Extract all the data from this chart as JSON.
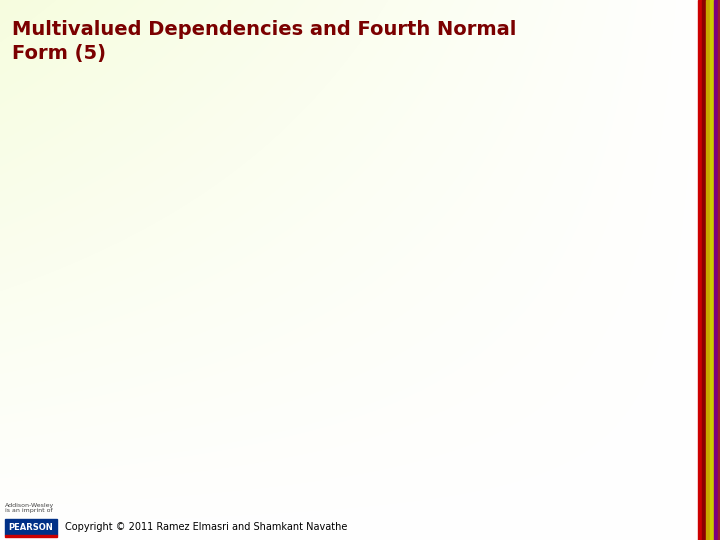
{
  "title": "Multivalued Dependencies and Fourth Normal\nForm (5)",
  "title_color": "#7B0000",
  "title_fontsize": 14,
  "copyright_text": "Copyright © 2011 Ramez Elmasri and Shamkant Navathe",
  "copyright_fontsize": 7,
  "copyright_color": "#000000",
  "pearson_box_color": "#003087",
  "pearson_text": "PEARSON",
  "pearson_text_color": "#FFFFFF",
  "pearson_fontsize": 6,
  "addison_line1": "Addison-Wesley",
  "addison_line2": "is an imprint of",
  "addison_fontsize": 4.5,
  "right_bar_colors": [
    "#CC0000",
    "#8B0000",
    "#C8A800",
    "#CCCC00",
    "#7B0080",
    "#9B1B30"
  ],
  "right_bar_x": [
    698,
    702,
    706,
    710,
    714,
    718
  ],
  "right_bar_width": 4,
  "grad_color_topleft": [
    0.96,
    0.99,
    0.85
  ],
  "grad_color_white": [
    1.0,
    1.0,
    1.0
  ]
}
